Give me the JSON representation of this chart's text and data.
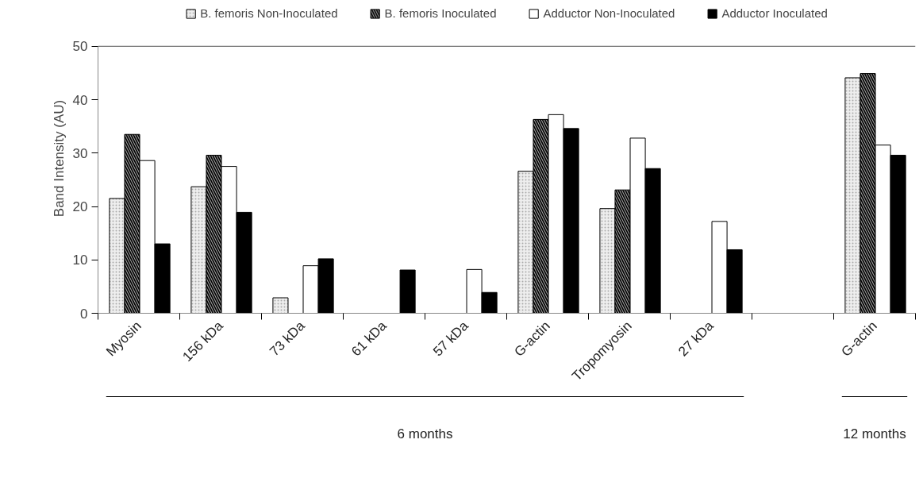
{
  "chart_data": {
    "type": "bar",
    "ylabel": "Band Intensity (AU)",
    "categories": [
      "Myosin",
      "156 kDa",
      "73 kDa",
      "61 kDa",
      "57 kDa",
      "G-actin",
      "Tropomyosin",
      "27 kDa",
      null,
      "G-actin"
    ],
    "series": [
      {
        "name": "B. femoris Non-Inoculated",
        "color": "#eeeeee",
        "values": [
          21.5,
          23.7,
          2.9,
          null,
          null,
          26.6,
          19.6,
          null,
          null,
          44.1
        ]
      },
      {
        "name": "B. femoris Inoculated",
        "color": "#9a9a9a",
        "values": [
          33.5,
          29.6,
          null,
          null,
          null,
          36.3,
          23.1,
          null,
          null,
          44.9
        ]
      },
      {
        "name": "Adductor Non-Inoculated",
        "color": "#ffffff",
        "values": [
          28.6,
          27.5,
          8.9,
          null,
          8.2,
          37.2,
          32.8,
          17.2,
          null,
          31.5
        ]
      },
      {
        "name": "Adductor Inoculated",
        "color": "#000000",
        "values": [
          13.0,
          18.9,
          10.2,
          8.1,
          3.9,
          34.6,
          27.1,
          11.9,
          null,
          29.6
        ]
      }
    ],
    "ylim": [
      0,
      50
    ],
    "yticks": [
      0,
      10,
      20,
      30,
      40,
      50
    ],
    "grid": false,
    "legend": "top",
    "annotations": [
      "6 months",
      "12 months"
    ]
  }
}
